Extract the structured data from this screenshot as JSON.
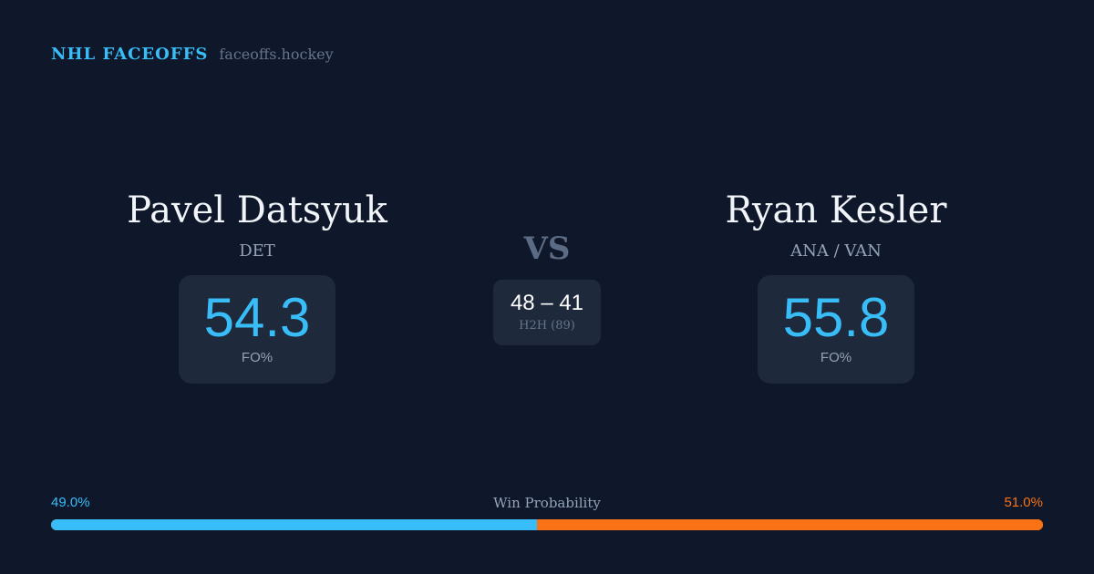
{
  "header": {
    "brand": "NHL FACEOFFS",
    "url": "faceoffs.hockey"
  },
  "left": {
    "name": "Pavel Datsyuk",
    "team": "DET",
    "fo_pct": "54.3",
    "fo_label": "FO%"
  },
  "right": {
    "name": "Ryan Kesler",
    "team": "ANA / VAN",
    "fo_pct": "55.8",
    "fo_label": "FO%"
  },
  "vs": "VS",
  "h2h": {
    "score": "48 – 41",
    "label": "H2H (89)"
  },
  "win_probability": {
    "title": "Win Probability",
    "left_label": "49.0%",
    "right_label": "51.0%",
    "left_value": 49.0,
    "right_value": 51.0,
    "left_color": "#38bdf8",
    "right_color": "#f97316"
  }
}
